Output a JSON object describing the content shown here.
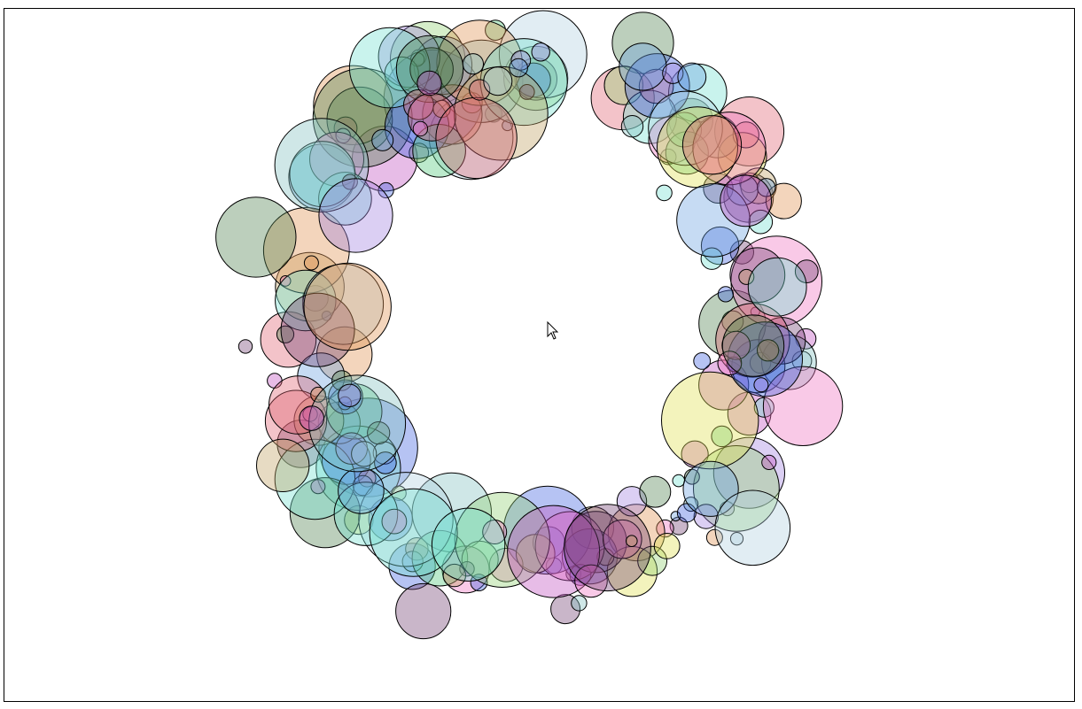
{
  "canvas": {
    "background": "#ffffff",
    "border_color": "#000000"
  },
  "circle_style": {
    "stroke": "#000000",
    "fill_opacity": 0.38
  },
  "palette": [
    "#e06070",
    "#6aa0e0",
    "#50c878",
    "#c050c0",
    "#e0e050",
    "#70e0d0",
    "#a080e0",
    "#e09050",
    "#90d070",
    "#f070c0",
    "#4060e0",
    "#508050",
    "#c0a060",
    "#80c0c0",
    "#704070",
    "#b0d0e0"
  ],
  "cursor": {
    "icon": "mouse-pointer-icon",
    "fill": "#ffffff",
    "stroke": "#000000"
  }
}
